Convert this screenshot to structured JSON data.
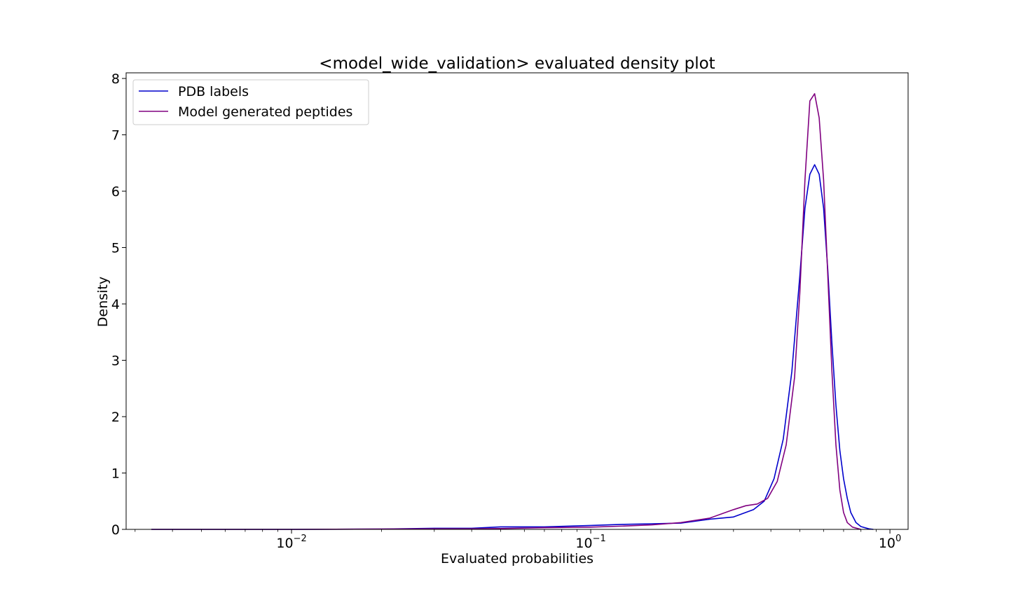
{
  "chart_data": {
    "type": "line",
    "title": "<model_wide_validation> evaluated density plot",
    "xlabel": "Evaluated probabilities",
    "ylabel": "Density",
    "x_scale": "log",
    "xlim": [
      0.0028,
      1.15
    ],
    "ylim": [
      0,
      8.1
    ],
    "x_ticks": [
      {
        "value": 0.01,
        "base": "10",
        "exp": "−2"
      },
      {
        "value": 0.1,
        "base": "10",
        "exp": "−1"
      },
      {
        "value": 1,
        "base": "10",
        "exp": "0"
      }
    ],
    "y_ticks": [
      0,
      1,
      2,
      3,
      4,
      5,
      6,
      7,
      8
    ],
    "grid": false,
    "legend_position": "top-left",
    "series": [
      {
        "name": "PDB labels",
        "color": "#0000cc",
        "points": [
          [
            0.0034,
            0.0
          ],
          [
            0.005,
            0.0
          ],
          [
            0.01,
            0.0
          ],
          [
            0.02,
            0.005
          ],
          [
            0.03,
            0.02
          ],
          [
            0.04,
            0.02
          ],
          [
            0.05,
            0.045
          ],
          [
            0.07,
            0.045
          ],
          [
            0.1,
            0.07
          ],
          [
            0.13,
            0.09
          ],
          [
            0.16,
            0.1
          ],
          [
            0.2,
            0.11
          ],
          [
            0.25,
            0.18
          ],
          [
            0.3,
            0.22
          ],
          [
            0.35,
            0.35
          ],
          [
            0.38,
            0.5
          ],
          [
            0.41,
            0.9
          ],
          [
            0.44,
            1.6
          ],
          [
            0.47,
            2.8
          ],
          [
            0.5,
            4.5
          ],
          [
            0.52,
            5.7
          ],
          [
            0.54,
            6.3
          ],
          [
            0.56,
            6.47
          ],
          [
            0.58,
            6.3
          ],
          [
            0.6,
            5.7
          ],
          [
            0.62,
            4.6
          ],
          [
            0.64,
            3.3
          ],
          [
            0.66,
            2.2
          ],
          [
            0.68,
            1.4
          ],
          [
            0.7,
            0.9
          ],
          [
            0.72,
            0.55
          ],
          [
            0.74,
            0.3
          ],
          [
            0.77,
            0.12
          ],
          [
            0.8,
            0.05
          ],
          [
            0.85,
            0.01
          ],
          [
            0.88,
            0.0
          ]
        ]
      },
      {
        "name": "Model generated peptides",
        "color": "#800080",
        "points": [
          [
            0.0034,
            0.0
          ],
          [
            0.005,
            0.0
          ],
          [
            0.01,
            0.0
          ],
          [
            0.02,
            0.005
          ],
          [
            0.03,
            0.01
          ],
          [
            0.04,
            0.01
          ],
          [
            0.05,
            0.015
          ],
          [
            0.07,
            0.03
          ],
          [
            0.1,
            0.04
          ],
          [
            0.13,
            0.06
          ],
          [
            0.16,
            0.08
          ],
          [
            0.2,
            0.12
          ],
          [
            0.25,
            0.2
          ],
          [
            0.3,
            0.35
          ],
          [
            0.33,
            0.42
          ],
          [
            0.36,
            0.45
          ],
          [
            0.39,
            0.55
          ],
          [
            0.42,
            0.85
          ],
          [
            0.45,
            1.5
          ],
          [
            0.48,
            2.7
          ],
          [
            0.5,
            4.2
          ],
          [
            0.52,
            6.2
          ],
          [
            0.54,
            7.6
          ],
          [
            0.56,
            7.73
          ],
          [
            0.58,
            7.3
          ],
          [
            0.6,
            6.2
          ],
          [
            0.62,
            4.5
          ],
          [
            0.64,
            2.8
          ],
          [
            0.66,
            1.5
          ],
          [
            0.68,
            0.7
          ],
          [
            0.7,
            0.3
          ],
          [
            0.72,
            0.12
          ],
          [
            0.75,
            0.04
          ],
          [
            0.8,
            0.0
          ]
        ]
      }
    ]
  }
}
